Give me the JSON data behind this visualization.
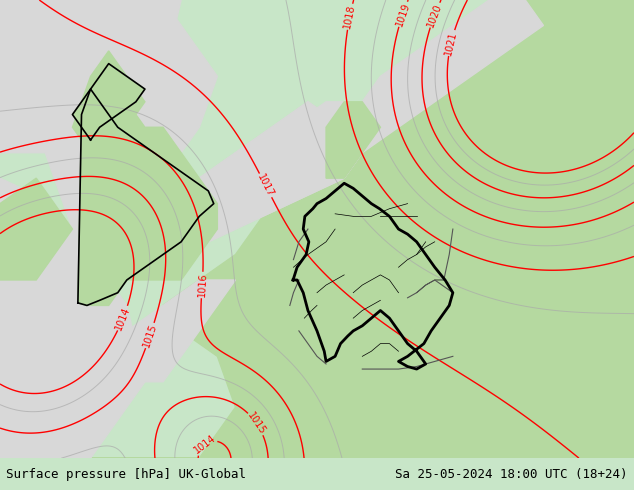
{
  "title_left": "Surface pressure [hPa] UK-Global",
  "title_right": "Sa 25-05-2024 18:00 UTC (18+24)",
  "bg_color_land_green": "#b5d9a0",
  "bg_color_sea": "#d8d8d8",
  "contour_color_red": "#ff0000",
  "contour_color_gray": "#aaaaaa",
  "border_color_thick": "#000000",
  "border_color_thin": "#555555",
  "text_color_bottom": "#000000",
  "font_size_bottom": 9,
  "bottom_bar_color": "#c8e6c8",
  "figsize": [
    6.34,
    4.9
  ],
  "dpi": 100,
  "xlim": [
    -10,
    25
  ],
  "ylim": [
    44,
    62
  ],
  "red_levels": [
    1014,
    1015,
    1016,
    1017,
    1018,
    1019,
    1020,
    1021
  ],
  "gray_levels": [
    1014.5,
    1015.5,
    1016.5,
    1017.5,
    1018.5,
    1019.5,
    1020.5
  ]
}
